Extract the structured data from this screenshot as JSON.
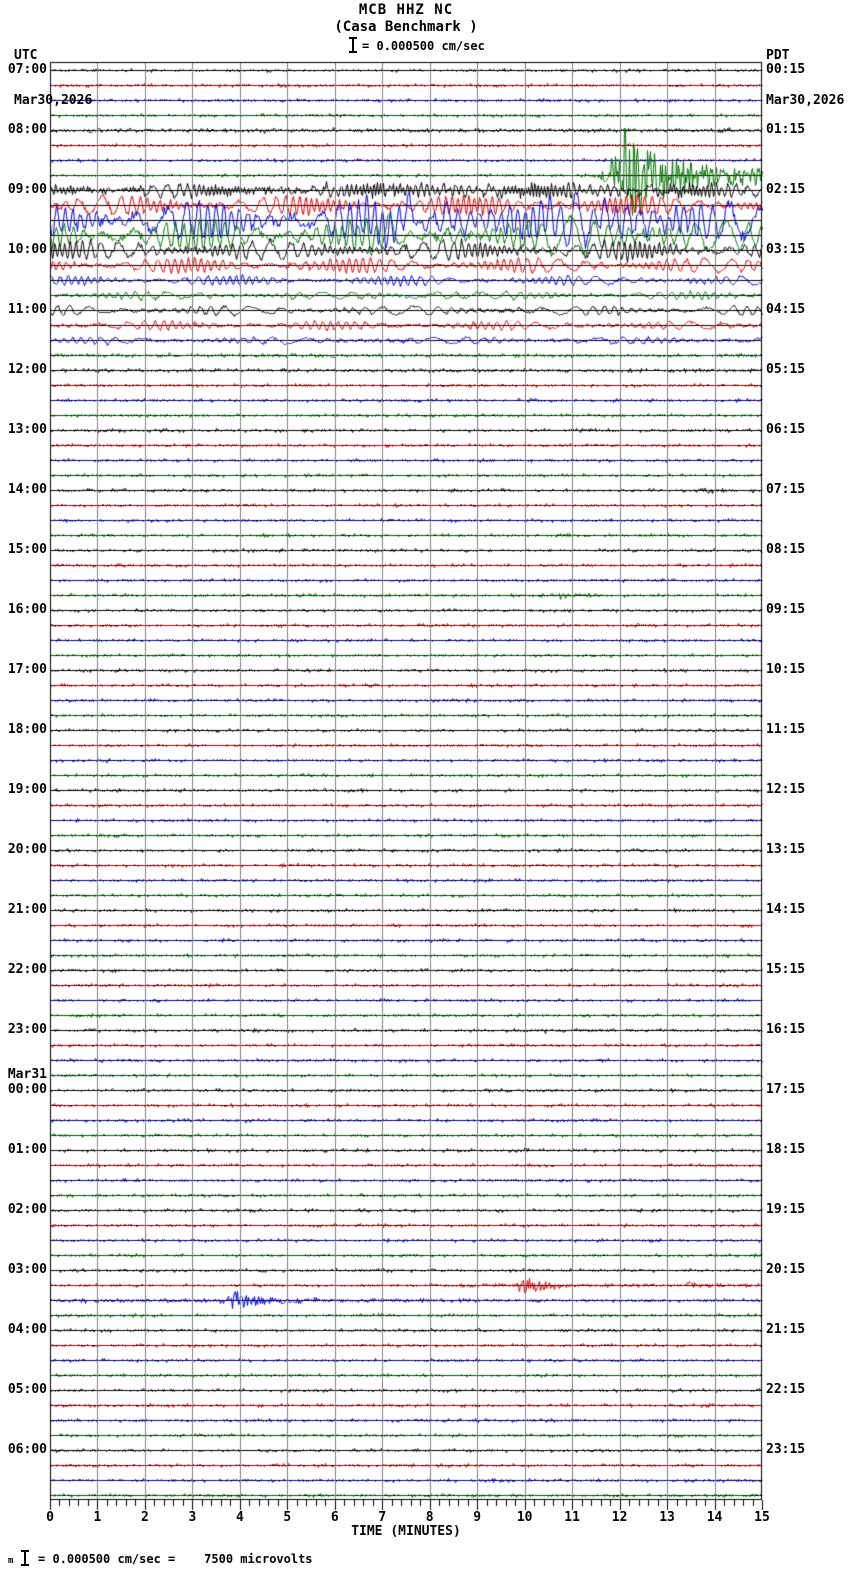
{
  "header": {
    "title": "MCB HHZ NC",
    "subtitle": "(Casa Benchmark )",
    "scale_label": "= 0.000500 cm/sec",
    "left_tz": "UTC",
    "left_date": "Mar30,2026",
    "right_tz": "PDT",
    "right_date": "Mar30,2026"
  },
  "footer": {
    "prefix": "m",
    "text": "= 0.000500 cm/sec =    7500 microvolts"
  },
  "axis": {
    "label": "TIME (MINUTES)",
    "tick_labels": [
      "0",
      "1",
      "2",
      "3",
      "4",
      "5",
      "6",
      "7",
      "8",
      "9",
      "10",
      "11",
      "12",
      "13",
      "14",
      "15"
    ],
    "minutes_per_line": 15,
    "minor_per_major": 5
  },
  "left_labels": [
    {
      "row": 0,
      "time": "07:00"
    },
    {
      "row": 4,
      "time": "08:00"
    },
    {
      "row": 8,
      "time": "09:00"
    },
    {
      "row": 12,
      "time": "10:00"
    },
    {
      "row": 16,
      "time": "11:00"
    },
    {
      "row": 20,
      "time": "12:00"
    },
    {
      "row": 24,
      "time": "13:00"
    },
    {
      "row": 28,
      "time": "14:00"
    },
    {
      "row": 32,
      "time": "15:00"
    },
    {
      "row": 36,
      "time": "16:00"
    },
    {
      "row": 40,
      "time": "17:00"
    },
    {
      "row": 44,
      "time": "18:00"
    },
    {
      "row": 48,
      "time": "19:00"
    },
    {
      "row": 52,
      "time": "20:00"
    },
    {
      "row": 56,
      "time": "21:00"
    },
    {
      "row": 60,
      "time": "22:00"
    },
    {
      "row": 64,
      "time": "23:00"
    },
    {
      "row": 68,
      "time": "00:00",
      "date": "Mar31"
    },
    {
      "row": 72,
      "time": "01:00"
    },
    {
      "row": 76,
      "time": "02:00"
    },
    {
      "row": 80,
      "time": "03:00"
    },
    {
      "row": 84,
      "time": "04:00"
    },
    {
      "row": 88,
      "time": "05:00"
    },
    {
      "row": 92,
      "time": "06:00"
    }
  ],
  "right_labels": [
    {
      "row": 0,
      "time": "00:15"
    },
    {
      "row": 4,
      "time": "01:15"
    },
    {
      "row": 8,
      "time": "02:15"
    },
    {
      "row": 12,
      "time": "03:15"
    },
    {
      "row": 16,
      "time": "04:15"
    },
    {
      "row": 20,
      "time": "05:15"
    },
    {
      "row": 24,
      "time": "06:15"
    },
    {
      "row": 28,
      "time": "07:15"
    },
    {
      "row": 32,
      "time": "08:15"
    },
    {
      "row": 36,
      "time": "09:15"
    },
    {
      "row": 40,
      "time": "10:15"
    },
    {
      "row": 44,
      "time": "11:15"
    },
    {
      "row": 48,
      "time": "12:15"
    },
    {
      "row": 52,
      "time": "13:15"
    },
    {
      "row": 56,
      "time": "14:15"
    },
    {
      "row": 60,
      "time": "15:15"
    },
    {
      "row": 64,
      "time": "16:15"
    },
    {
      "row": 68,
      "time": "17:15"
    },
    {
      "row": 72,
      "time": "18:15"
    },
    {
      "row": 76,
      "time": "19:15"
    },
    {
      "row": 80,
      "time": "20:15"
    },
    {
      "row": 84,
      "time": "21:15"
    },
    {
      "row": 88,
      "time": "22:15"
    },
    {
      "row": 92,
      "time": "23:15"
    }
  ],
  "chart_data": {
    "type": "line",
    "title": "MCB HHZ NC (Casa Benchmark) heliplot, 24 h, 15-min lines",
    "x_minutes": 15,
    "rows": 96,
    "rows_per_hour": 4,
    "first_row_utc": "07:00 Mar30,2026",
    "colors_cycle": [
      "#000000",
      "#dd0000",
      "#0000dd",
      "#007700"
    ],
    "grid_color": "#808080",
    "base_noise_amp": 0.8,
    "events": [
      {
        "row": 4,
        "kind": "noise",
        "start": 0,
        "end": 15,
        "amp": 1.5
      },
      {
        "row": 7,
        "kind": "burst",
        "start": 11.4,
        "peak": 12.1,
        "tau": 1.3,
        "end": 15,
        "amp": 45
      },
      {
        "row": 7,
        "kind": "wave",
        "start": 12.0,
        "end": 15,
        "amp": 7,
        "freq": 9
      },
      {
        "row": 8,
        "kind": "wave",
        "start": 0,
        "end": 15,
        "amp": 6,
        "freq": 12
      },
      {
        "row": 8,
        "kind": "noise",
        "start": 0,
        "end": 15,
        "amp": 4
      },
      {
        "row": 8,
        "kind": "wave",
        "start": 7,
        "end": 13.5,
        "amp": 4,
        "freq": 7
      },
      {
        "row": 9,
        "kind": "wave",
        "start": 0,
        "end": 15,
        "amp": 9,
        "freq": 7
      },
      {
        "row": 9,
        "kind": "noise",
        "start": 0,
        "end": 15,
        "amp": 2.5
      },
      {
        "row": 10,
        "kind": "wave",
        "start": 0,
        "end": 15,
        "amp": 18,
        "freq": 5
      },
      {
        "row": 10,
        "kind": "wave",
        "start": 6.5,
        "end": 14,
        "amp": 14,
        "freq": 3.5
      },
      {
        "row": 10,
        "kind": "noise",
        "start": 0,
        "end": 15,
        "amp": 6
      },
      {
        "row": 11,
        "kind": "wave",
        "start": 0,
        "end": 15,
        "amp": 14,
        "freq": 5
      },
      {
        "row": 11,
        "kind": "wave",
        "start": 5,
        "end": 13,
        "amp": 8,
        "freq": 3.5
      },
      {
        "row": 11,
        "kind": "noise",
        "start": 0,
        "end": 15,
        "amp": 4
      },
      {
        "row": 12,
        "kind": "wave",
        "start": 0,
        "end": 15,
        "amp": 9,
        "freq": 8
      },
      {
        "row": 12,
        "kind": "noise",
        "start": 0,
        "end": 15,
        "amp": 3
      },
      {
        "row": 13,
        "kind": "wave",
        "start": 0,
        "end": 15,
        "amp": 7,
        "freq": 6
      },
      {
        "row": 13,
        "kind": "noise",
        "start": 0,
        "end": 15,
        "amp": 1.5
      },
      {
        "row": 14,
        "kind": "wave",
        "start": 0,
        "end": 15,
        "amp": 4.5,
        "freq": 6
      },
      {
        "row": 15,
        "kind": "wave",
        "start": 0,
        "end": 15,
        "amp": 3.5,
        "freq": 5
      },
      {
        "row": 15,
        "kind": "wave",
        "start": 6.3,
        "end": 8.6,
        "amp": 3,
        "freq": 3
      },
      {
        "row": 16,
        "kind": "wave",
        "start": 0,
        "end": 15,
        "amp": 4.5,
        "freq": 4.5
      },
      {
        "row": 17,
        "kind": "wave",
        "start": 0,
        "end": 15,
        "amp": 4,
        "freq": 5
      },
      {
        "row": 18,
        "kind": "wave",
        "start": 0,
        "end": 15,
        "amp": 3.2,
        "freq": 4.5
      },
      {
        "row": 19,
        "kind": "noise",
        "start": 0,
        "end": 15,
        "amp": 1.2
      },
      {
        "row": 20,
        "kind": "noise",
        "start": 0,
        "end": 15,
        "amp": 1.0
      },
      {
        "row": 28,
        "kind": "burst",
        "start": 13.4,
        "peak": 13.8,
        "tau": 0.5,
        "end": 14.8,
        "amp": 2.6
      },
      {
        "row": 29,
        "kind": "burst",
        "start": 3.8,
        "peak": 4.0,
        "tau": 0.3,
        "end": 4.8,
        "amp": 2.0
      },
      {
        "row": 35,
        "kind": "burst",
        "start": 9.6,
        "peak": 10.7,
        "tau": 0.6,
        "end": 11.9,
        "amp": 3.0
      },
      {
        "row": 64,
        "kind": "noise",
        "start": 10.2,
        "end": 12.3,
        "amp": 1.5
      },
      {
        "row": 66,
        "kind": "burst",
        "start": 11.45,
        "peak": 11.55,
        "tau": 0.12,
        "end": 11.9,
        "amp": 2.2
      },
      {
        "row": 81,
        "kind": "noise",
        "start": 8.1,
        "end": 9.6,
        "amp": 2.2
      },
      {
        "row": 81,
        "kind": "burst",
        "start": 9.6,
        "peak": 10.0,
        "tau": 0.4,
        "end": 11.2,
        "amp": 11
      },
      {
        "row": 81,
        "kind": "noise",
        "start": 11.2,
        "end": 12.4,
        "amp": 1.6
      },
      {
        "row": 81,
        "kind": "burst",
        "start": 13.3,
        "peak": 13.45,
        "tau": 0.18,
        "end": 14.0,
        "amp": 5.5
      },
      {
        "row": 81,
        "kind": "noise",
        "start": 14.0,
        "end": 14.7,
        "amp": 1.2
      },
      {
        "row": 82,
        "kind": "noise",
        "start": 0.2,
        "end": 3.3,
        "amp": 2.0
      },
      {
        "row": 82,
        "kind": "burst",
        "start": 3.3,
        "peak": 3.9,
        "tau": 0.9,
        "end": 6.0,
        "amp": 9
      },
      {
        "row": 82,
        "kind": "noise",
        "start": 6.0,
        "end": 9.5,
        "amp": 1.6
      }
    ]
  }
}
